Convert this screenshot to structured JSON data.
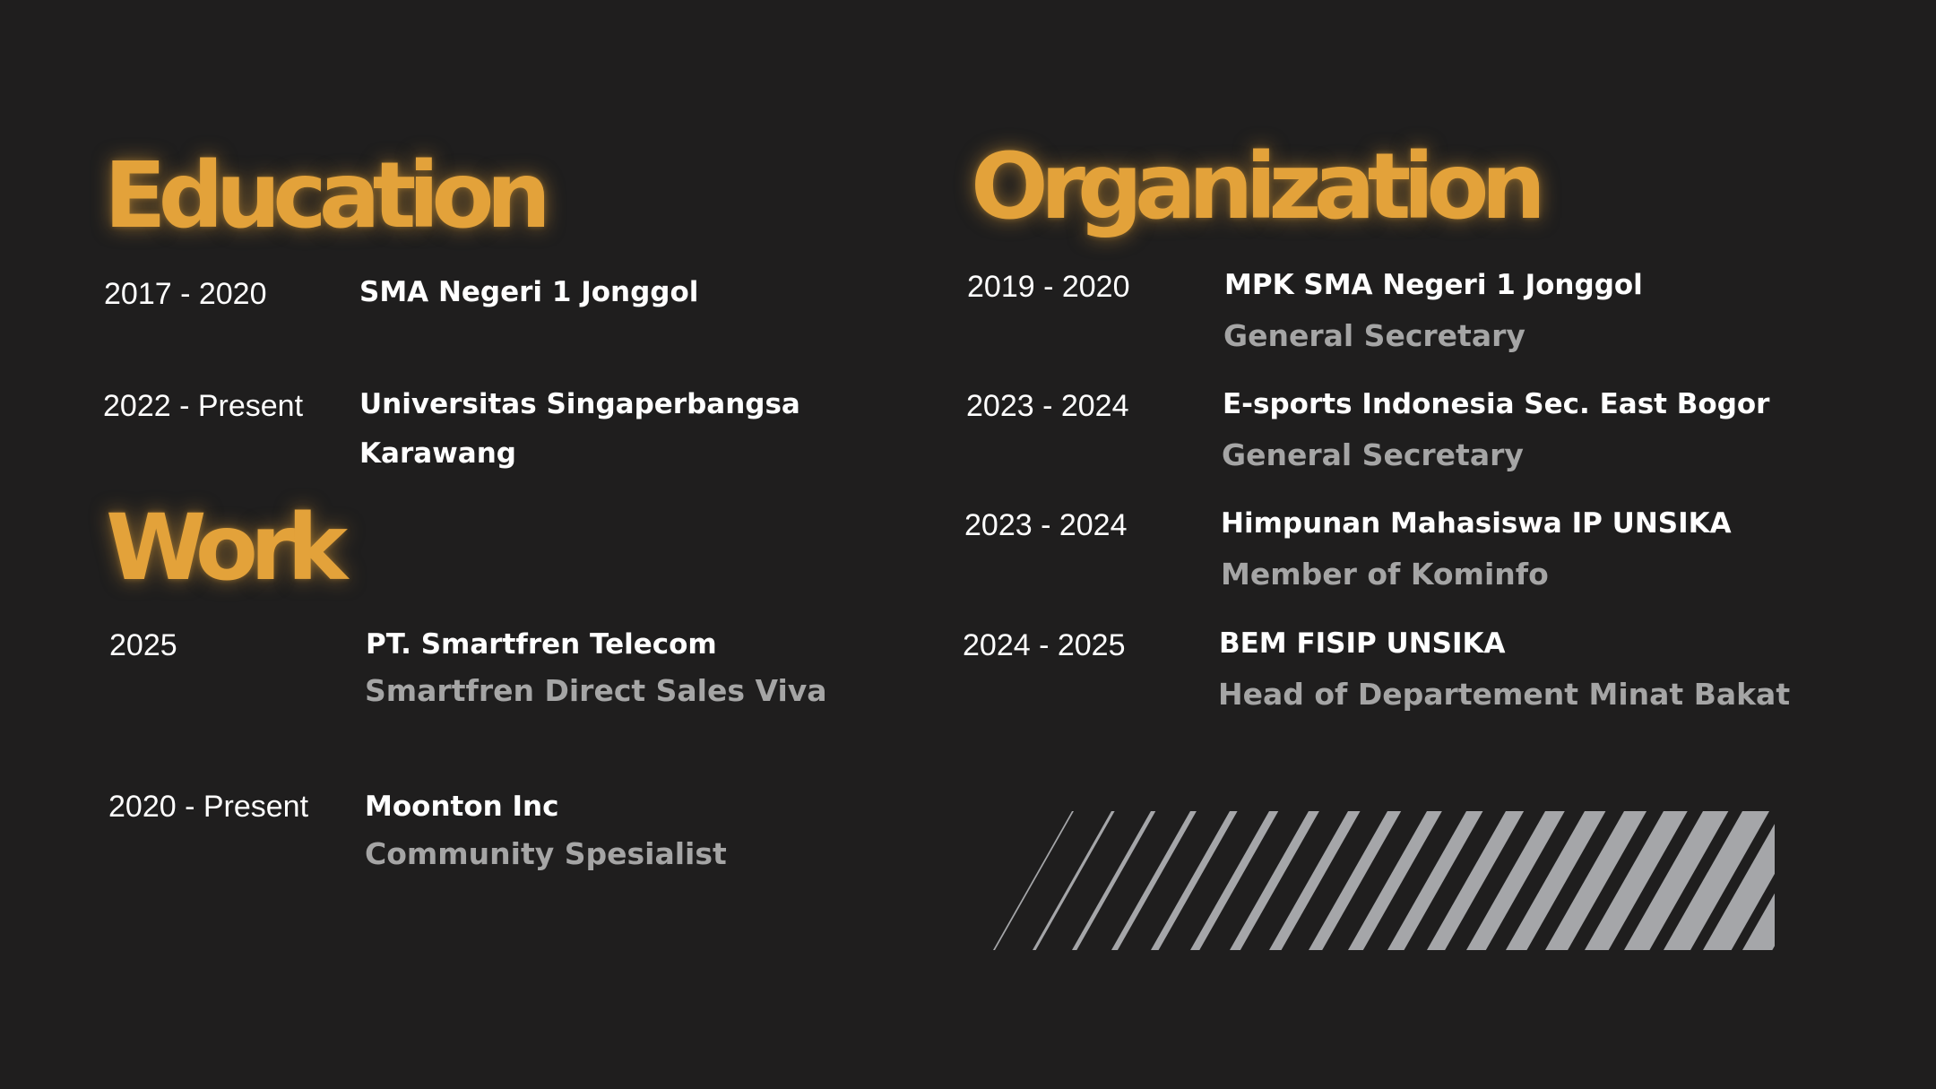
{
  "colors": {
    "background": "#1f1e1e",
    "accent": "#e3a23a",
    "primary_text": "#ffffff",
    "secondary_text": "#a5a5a5",
    "stripes": "#a5a6a9"
  },
  "education": {
    "heading": "Education",
    "items": [
      {
        "period": "2017 - 2020",
        "institution_line1": "SMA Negeri 1 Jonggol"
      },
      {
        "period": "2022 - Present",
        "institution_line1": "Universitas Singaperbangsa",
        "institution_line2": "Karawang"
      }
    ]
  },
  "work": {
    "heading": "Work",
    "items": [
      {
        "period": "2025",
        "company": "PT. Smartfren Telecom",
        "role": "Smartfren Direct Sales Viva"
      },
      {
        "period": "2020 - Present",
        "company": "Moonton Inc",
        "role": "Community Spesialist"
      }
    ]
  },
  "organization": {
    "heading": "Organization",
    "items": [
      {
        "period": "2019 - 2020",
        "org": "MPK SMA Negeri 1 Jonggol",
        "role": "General Secretary"
      },
      {
        "period": "2023 - 2024",
        "org": "E-sports Indonesia Sec. East Bogor",
        "role": "General Secretary"
      },
      {
        "period": "2023 - 2024",
        "org": "Himpunan Mahasiswa IP UNSIKA",
        "role": "Member of Kominfo"
      },
      {
        "period": "2024 - 2025",
        "org": "BEM FISIP UNSIKA",
        "role": "Head of Departement Minat Bakat"
      }
    ]
  },
  "decoration": {
    "icon": "diagonal-stripes-graphic"
  }
}
